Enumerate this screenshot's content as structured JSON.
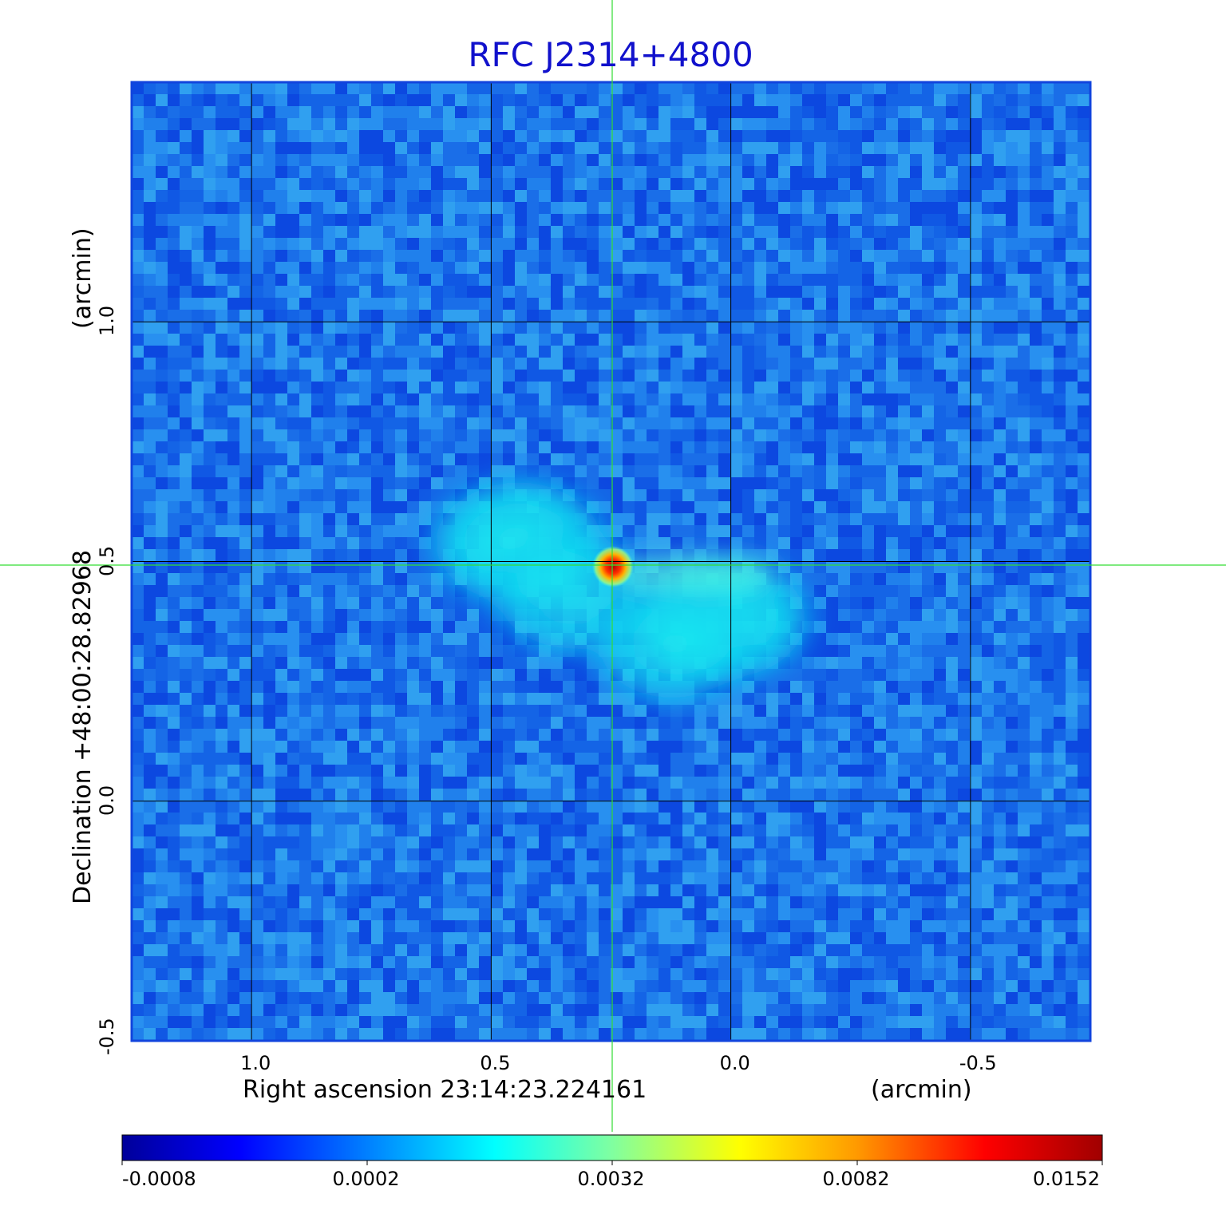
{
  "chart_data": {
    "type": "heatmap",
    "title": "RFC J2314+4800",
    "xlabel": "Right ascension  23:14:23.224161",
    "xunit": "(arcmin)",
    "ylabel": "Declination  +48:00:28.82968",
    "yunit": "(arcmin)",
    "x_ticks": [
      "1.0",
      "0.5",
      "0.0",
      "-0.5"
    ],
    "x_tick_values": [
      1.0,
      0.5,
      0.0,
      -0.5
    ],
    "y_ticks": [
      "-0.5",
      "0.0",
      "0.5",
      "1.0"
    ],
    "y_tick_values": [
      -0.5,
      0.0,
      0.5,
      1.0
    ],
    "xlim": [
      1.25,
      -0.75
    ],
    "ylim": [
      -0.5,
      1.5
    ],
    "grid": true,
    "crosshair": {
      "x": 0.248,
      "y": 0.484
    },
    "colorbar": {
      "ticks": [
        "-0.0008",
        "0.0002",
        "0.0032",
        "0.0082",
        "0.0152"
      ],
      "tick_values": [
        -0.0008,
        0.0002,
        0.0032,
        0.0082,
        0.0152
      ],
      "colormap": "jet"
    },
    "peak": {
      "x": 0.248,
      "y": 0.484,
      "value": 0.0152
    },
    "colors": {
      "title": "#1111cc",
      "frame": "#1144dd",
      "grid": "#000000",
      "crosshair": "#33dd33"
    }
  }
}
